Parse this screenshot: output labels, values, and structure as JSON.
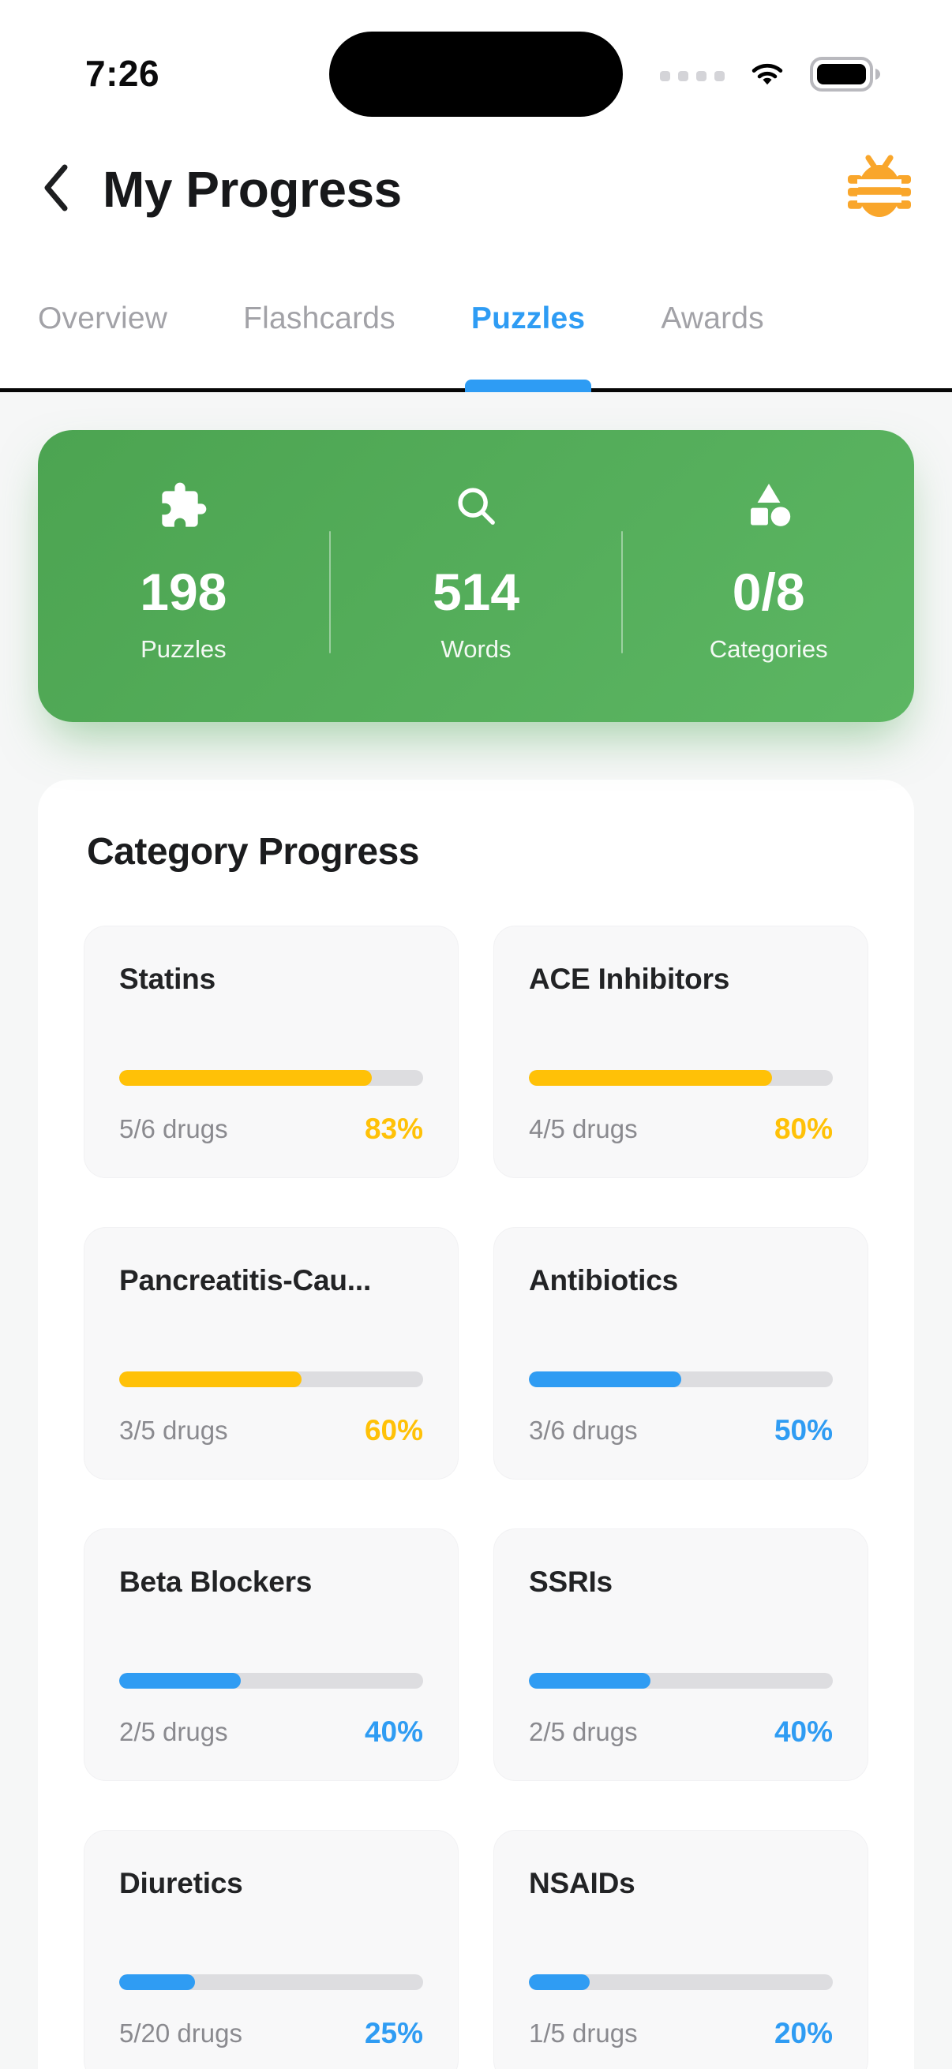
{
  "status_bar": {
    "time": "7:26",
    "icons": [
      "cellular-signal-icon",
      "wifi-icon",
      "battery-icon"
    ]
  },
  "header": {
    "title": "My Progress",
    "back_icon": "chevron-left-icon",
    "right_icon": "bug-icon",
    "bug_color": "#f9a62b"
  },
  "tabs": {
    "active_color": "#2e9cf4",
    "inactive_color": "#a2a2a7",
    "items": [
      {
        "id": "overview",
        "label": "Overview",
        "active": false
      },
      {
        "id": "flashcards",
        "label": "Flashcards",
        "active": false
      },
      {
        "id": "puzzles",
        "label": "Puzzles",
        "active": true
      },
      {
        "id": "awards",
        "label": "Awards",
        "active": false
      }
    ]
  },
  "stats_card": {
    "gradient": [
      "#4ca451",
      "#5cb663"
    ],
    "items": [
      {
        "icon": "puzzle-icon",
        "value": "198",
        "label": "Puzzles"
      },
      {
        "icon": "search-icon",
        "value": "514",
        "label": "Words"
      },
      {
        "icon": "category-icon",
        "value": "0/8",
        "label": "Categories"
      }
    ]
  },
  "category_progress": {
    "heading": "Category Progress",
    "track_color": "#dddde0",
    "yellow": "#ffc107",
    "blue": "#2f9cf3",
    "cards": [
      {
        "title": "Statins",
        "count": "5/6 drugs",
        "percent": 83,
        "percent_label": "83%",
        "color": "#ffc107"
      },
      {
        "title": "ACE Inhibitors",
        "count": "4/5 drugs",
        "percent": 80,
        "percent_label": "80%",
        "color": "#ffc107"
      },
      {
        "title": "Pancreatitis-Cau...",
        "count": "3/5 drugs",
        "percent": 60,
        "percent_label": "60%",
        "color": "#ffc107"
      },
      {
        "title": "Antibiotics",
        "count": "3/6 drugs",
        "percent": 50,
        "percent_label": "50%",
        "color": "#2f9cf3"
      },
      {
        "title": "Beta Blockers",
        "count": "2/5 drugs",
        "percent": 40,
        "percent_label": "40%",
        "color": "#2f9cf3"
      },
      {
        "title": "SSRIs",
        "count": "2/5 drugs",
        "percent": 40,
        "percent_label": "40%",
        "color": "#2f9cf3"
      },
      {
        "title": "Diuretics",
        "count": "5/20 drugs",
        "percent": 25,
        "percent_label": "25%",
        "color": "#2f9cf3"
      },
      {
        "title": "NSAIDs",
        "count": "1/5 drugs",
        "percent": 20,
        "percent_label": "20%",
        "color": "#2f9cf3"
      }
    ]
  }
}
